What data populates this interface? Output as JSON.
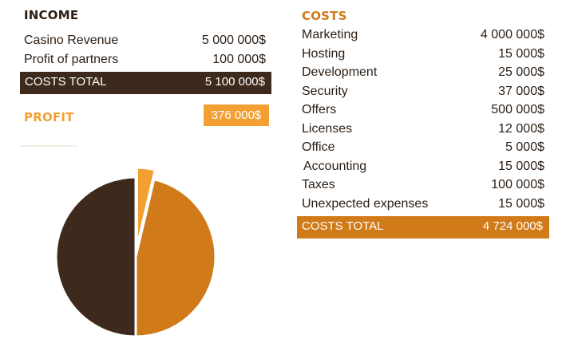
{
  "colors": {
    "dark_brown": "#3e2a1c",
    "orange": "#d07a1a",
    "light_orange": "#f3a032",
    "text": "#2b1e14"
  },
  "income": {
    "title": "INCOME",
    "rows": [
      {
        "label": "Casino Revenue",
        "value": "5 000 000$"
      },
      {
        "label": "Profit of partners",
        "value": "100 000$"
      }
    ],
    "total_label": "COSTS TOTAL",
    "total_value": "5 100 000$"
  },
  "profit": {
    "title": "PROFIT",
    "value": "376 000$"
  },
  "costs": {
    "title": "COSTS",
    "rows": [
      {
        "label": "Marketing",
        "value": "4 000 000$"
      },
      {
        "label": "Hosting",
        "value": "15 000$"
      },
      {
        "label": "Development",
        "value": "25 000$"
      },
      {
        "label": "Security",
        "value": "37 000$"
      },
      {
        "label": "Offers",
        "value": "500 000$"
      },
      {
        "label": "Licenses",
        "value": "12 000$"
      },
      {
        "label": "Office",
        "value": "5 000$"
      },
      {
        "label": "Accounting",
        "value": "15 000$"
      },
      {
        "label": "Taxes",
        "value": "100 000$"
      },
      {
        "label": "Unexpected expenses",
        "value": "15 000$"
      }
    ],
    "total_label": "COSTS TOTAL",
    "total_value": "4 724 000$"
  },
  "chart_data": {
    "type": "pie",
    "title": "",
    "slices": [
      {
        "value": 5100000,
        "color": "#3e2a1c",
        "exploded": false
      },
      {
        "value": 376000,
        "color": "#f3a032",
        "exploded": true
      },
      {
        "value": 4724000,
        "color": "#d07a1a",
        "exploded": false
      }
    ],
    "start_angle_deg": 180,
    "direction": "clockwise",
    "legend": "none"
  }
}
